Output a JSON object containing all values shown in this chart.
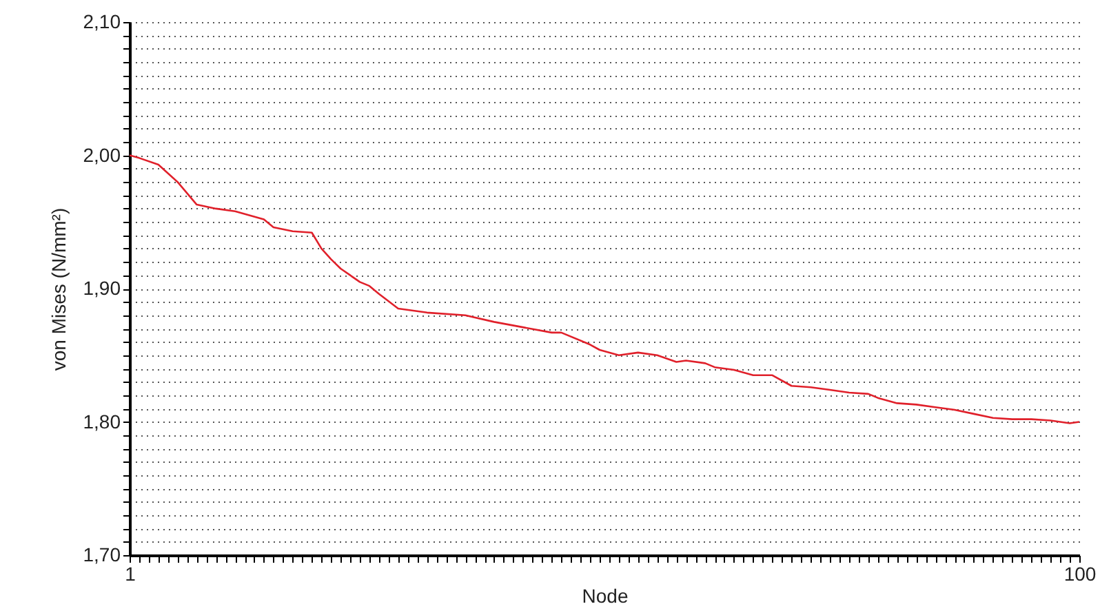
{
  "chart_data": {
    "type": "line",
    "xlabel": "Node",
    "ylabel": "von Mises (N/mm²)",
    "x": [
      1,
      2,
      4,
      6,
      8,
      10,
      12,
      15,
      16,
      18,
      20,
      21,
      22,
      23,
      25,
      26,
      27,
      29,
      32,
      36,
      39,
      42,
      45,
      46,
      49,
      50,
      52,
      54,
      56,
      58,
      59,
      61,
      62,
      64,
      66,
      68,
      70,
      72,
      74,
      76,
      78,
      79,
      81,
      83,
      85,
      87,
      89,
      91,
      93,
      95,
      97,
      99,
      100
    ],
    "series": [
      {
        "color": "#e0202a",
        "values": [
          2.0,
          1.998,
          1.993,
          1.98,
          1.963,
          1.96,
          1.958,
          1.952,
          1.946,
          1.943,
          1.942,
          1.93,
          1.922,
          1.915,
          1.905,
          1.902,
          1.896,
          1.885,
          1.882,
          1.88,
          1.875,
          1.871,
          1.867,
          1.867,
          1.858,
          1.854,
          1.85,
          1.852,
          1.85,
          1.845,
          1.846,
          1.844,
          1.841,
          1.839,
          1.835,
          1.835,
          1.827,
          1.826,
          1.824,
          1.822,
          1.821,
          1.818,
          1.814,
          1.813,
          1.811,
          1.809,
          1.806,
          1.803,
          1.802,
          1.802,
          1.801,
          1.799,
          1.8
        ]
      }
    ],
    "xlim": [
      1,
      100
    ],
    "xticks": [
      1,
      {
        "value": 2,
        "label": null
      },
      {
        "value": 3,
        "label": null
      },
      {
        "value": 4,
        "label": null
      },
      {
        "value": 5,
        "label": null
      },
      {
        "value": 6,
        "label": null
      },
      {
        "value": 7,
        "label": null
      },
      {
        "value": 8,
        "label": null
      },
      {
        "value": 9,
        "label": null
      },
      {
        "value": 10,
        "label": null
      },
      {
        "value": 11,
        "label": null
      },
      {
        "value": 12,
        "label": null
      },
      {
        "value": 13,
        "label": null
      },
      {
        "value": 14,
        "label": null
      },
      {
        "value": 15,
        "label": null
      },
      {
        "value": 16,
        "label": null
      },
      {
        "value": 17,
        "label": null
      },
      {
        "value": 18,
        "label": null
      },
      {
        "value": 19,
        "label": null
      },
      {
        "value": 20,
        "label": null
      },
      {
        "value": 21,
        "label": null
      },
      {
        "value": 22,
        "label": null
      },
      {
        "value": 23,
        "label": null
      },
      {
        "value": 24,
        "label": null
      },
      {
        "value": 25,
        "label": null
      },
      {
        "value": 26,
        "label": null
      },
      {
        "value": 27,
        "label": null
      },
      {
        "value": 28,
        "label": null
      },
      {
        "value": 29,
        "label": null
      },
      {
        "value": 30,
        "label": null
      },
      {
        "value": 31,
        "label": null
      },
      {
        "value": 32,
        "label": null
      },
      {
        "value": 33,
        "label": null
      },
      {
        "value": 34,
        "label": null
      },
      {
        "value": 35,
        "label": null
      },
      {
        "value": 36,
        "label": null
      },
      {
        "value": 37,
        "label": null
      },
      {
        "value": 38,
        "label": null
      },
      {
        "value": 39,
        "label": null
      },
      {
        "value": 40,
        "label": null
      },
      {
        "value": 41,
        "label": null
      },
      {
        "value": 42,
        "label": null
      },
      {
        "value": 43,
        "label": null
      },
      {
        "value": 44,
        "label": null
      },
      {
        "value": 45,
        "label": null
      },
      {
        "value": 46,
        "label": null
      },
      {
        "value": 47,
        "label": null
      },
      {
        "value": 48,
        "label": null
      },
      {
        "value": 49,
        "label": null
      },
      {
        "value": 50,
        "label": null
      },
      {
        "value": 51,
        "label": null
      },
      {
        "value": 52,
        "label": null
      },
      {
        "value": 53,
        "label": null
      },
      {
        "value": 54,
        "label": null
      },
      {
        "value": 55,
        "label": null
      },
      {
        "value": 56,
        "label": null
      },
      {
        "value": 57,
        "label": null
      },
      {
        "value": 58,
        "label": null
      },
      {
        "value": 59,
        "label": null
      },
      {
        "value": 60,
        "label": null
      },
      {
        "value": 61,
        "label": null
      },
      {
        "value": 62,
        "label": null
      },
      {
        "value": 63,
        "label": null
      },
      {
        "value": 64,
        "label": null
      },
      {
        "value": 65,
        "label": null
      },
      {
        "value": 66,
        "label": null
      },
      {
        "value": 67,
        "label": null
      },
      {
        "value": 68,
        "label": null
      },
      {
        "value": 69,
        "label": null
      },
      {
        "value": 70,
        "label": null
      },
      {
        "value": 71,
        "label": null
      },
      {
        "value": 72,
        "label": null
      },
      {
        "value": 73,
        "label": null
      },
      {
        "value": 74,
        "label": null
      },
      {
        "value": 75,
        "label": null
      },
      {
        "value": 76,
        "label": null
      },
      {
        "value": 77,
        "label": null
      },
      {
        "value": 78,
        "label": null
      },
      {
        "value": 79,
        "label": null
      },
      {
        "value": 80,
        "label": null
      },
      {
        "value": 81,
        "label": null
      },
      {
        "value": 82,
        "label": null
      },
      {
        "value": 83,
        "label": null
      },
      {
        "value": 84,
        "label": null
      },
      {
        "value": 85,
        "label": null
      },
      {
        "value": 86,
        "label": null
      },
      {
        "value": 87,
        "label": null
      },
      {
        "value": 88,
        "label": null
      },
      {
        "value": 89,
        "label": null
      },
      {
        "value": 90,
        "label": null
      },
      {
        "value": 91,
        "label": null
      },
      {
        "value": 92,
        "label": null
      },
      {
        "value": 93,
        "label": null
      },
      {
        "value": 94,
        "label": null
      },
      {
        "value": 95,
        "label": null
      },
      {
        "value": 96,
        "label": null
      },
      {
        "value": 97,
        "label": null
      },
      {
        "value": 98,
        "label": null
      },
      {
        "value": 99,
        "label": null
      },
      100
    ],
    "ylim": [
      1.7,
      2.1
    ],
    "yticks": [
      {
        "value": 1.7,
        "label": "1,70"
      },
      {
        "value": 1.71,
        "label": null
      },
      {
        "value": 1.72,
        "label": null
      },
      {
        "value": 1.73,
        "label": null
      },
      {
        "value": 1.74,
        "label": null
      },
      {
        "value": 1.75,
        "label": null
      },
      {
        "value": 1.76,
        "label": null
      },
      {
        "value": 1.77,
        "label": null
      },
      {
        "value": 1.78,
        "label": null
      },
      {
        "value": 1.79,
        "label": null
      },
      {
        "value": 1.8,
        "label": "1,80"
      },
      {
        "value": 1.81,
        "label": null
      },
      {
        "value": 1.82,
        "label": null
      },
      {
        "value": 1.83,
        "label": null
      },
      {
        "value": 1.84,
        "label": null
      },
      {
        "value": 1.85,
        "label": null
      },
      {
        "value": 1.86,
        "label": null
      },
      {
        "value": 1.87,
        "label": null
      },
      {
        "value": 1.88,
        "label": null
      },
      {
        "value": 1.89,
        "label": null
      },
      {
        "value": 1.9,
        "label": "1,90"
      },
      {
        "value": 1.91,
        "label": null
      },
      {
        "value": 1.92,
        "label": null
      },
      {
        "value": 1.93,
        "label": null
      },
      {
        "value": 1.94,
        "label": null
      },
      {
        "value": 1.95,
        "label": null
      },
      {
        "value": 1.96,
        "label": null
      },
      {
        "value": 1.97,
        "label": null
      },
      {
        "value": 1.98,
        "label": null
      },
      {
        "value": 1.99,
        "label": null
      },
      {
        "value": 2.0,
        "label": "2,00"
      },
      {
        "value": 2.01,
        "label": null
      },
      {
        "value": 2.02,
        "label": null
      },
      {
        "value": 2.03,
        "label": null
      },
      {
        "value": 2.04,
        "label": null
      },
      {
        "value": 2.05,
        "label": null
      },
      {
        "value": 2.06,
        "label": null
      },
      {
        "value": 2.07,
        "label": null
      },
      {
        "value": 2.08,
        "label": null
      },
      {
        "value": 2.09,
        "label": null
      },
      {
        "value": 2.1,
        "label": "2,10"
      }
    ],
    "grid": "y",
    "line_style": "solid"
  }
}
